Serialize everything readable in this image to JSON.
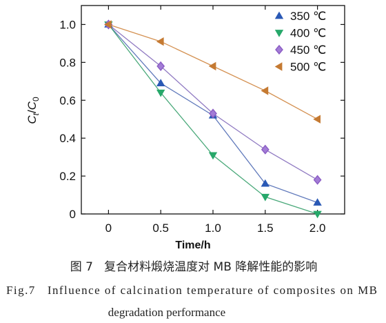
{
  "chart_data": {
    "type": "line",
    "xlabel": "Time/h",
    "ylabel": [
      {
        "text": "C",
        "italic": true,
        "sub": false
      },
      {
        "text": "t",
        "italic": true,
        "sub": true
      },
      {
        "text": "/",
        "italic": false,
        "sub": false
      },
      {
        "text": "C",
        "italic": true,
        "sub": false
      },
      {
        "text": "0",
        "italic": false,
        "sub": true
      }
    ],
    "xlim": [
      -0.26,
      2.26
    ],
    "ylim": [
      0,
      1.1
    ],
    "xticks": [
      0,
      0.5,
      1.0,
      1.5,
      2.0
    ],
    "xtick_labels": [
      "0",
      "0.5",
      "1.0",
      "1.5",
      "2.0"
    ],
    "yticks": [
      0,
      0.2,
      0.4,
      0.6,
      0.8,
      1.0
    ],
    "ytick_labels": [
      "0",
      "0.2",
      "0.4",
      "0.6",
      "0.8",
      "1.0"
    ],
    "grid": false,
    "legend": "top-right",
    "x": [
      0,
      0.5,
      1.0,
      1.5,
      2.0
    ],
    "series": [
      {
        "name": "350 ℃",
        "values": [
          1.0,
          0.69,
          0.52,
          0.16,
          0.06
        ],
        "marker": "triangle-up",
        "color": "#2a59b5",
        "line_color": "#6079bb"
      },
      {
        "name": "400 ℃",
        "values": [
          1.0,
          0.64,
          0.31,
          0.09,
          0.0
        ],
        "marker": "triangle-down",
        "color": "#27a86a",
        "line_color": "#4aa97a"
      },
      {
        "name": "450 ℃",
        "values": [
          1.0,
          0.78,
          0.53,
          0.34,
          0.18
        ],
        "marker": "diamond",
        "color": "#8b5cc4",
        "line_color": "#907ac2"
      },
      {
        "name": "500 ℃",
        "values": [
          1.0,
          0.91,
          0.78,
          0.65,
          0.5
        ],
        "marker": "triangle-left",
        "color": "#c57a32",
        "line_color": "#d49152"
      }
    ]
  },
  "caption": {
    "cn": "图 7   复合材料煅烧温度对 MB 降解性能的影响",
    "en_line1": "Fig.7   Influence of calcination temperature of composites on MB",
    "en_line2": "degradation performance"
  }
}
